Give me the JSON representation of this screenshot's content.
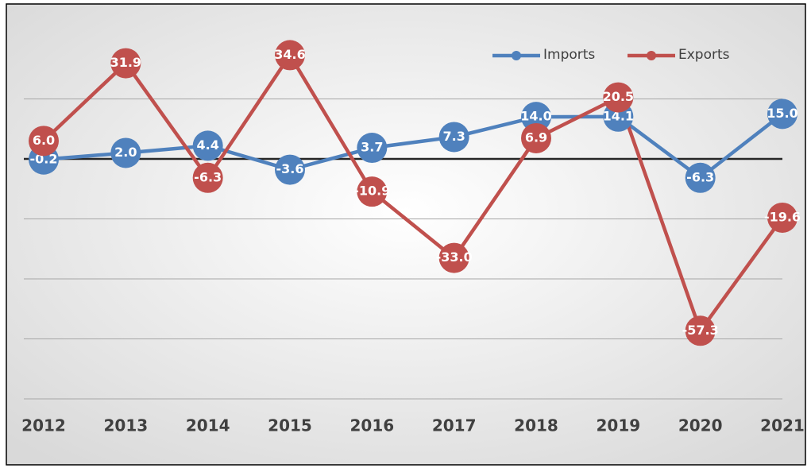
{
  "chart_data": {
    "type": "line",
    "categories": [
      "2012",
      "2013",
      "2014",
      "2015",
      "2016",
      "2017",
      "2018",
      "2019",
      "2020",
      "2021"
    ],
    "series": [
      {
        "name": "Imports",
        "color": "#4f81bd",
        "values": [
          -0.2,
          2.0,
          4.4,
          -3.6,
          3.7,
          7.3,
          14.0,
          14.1,
          -6.3,
          15.0
        ],
        "value_labels": [
          "-0.2",
          "2.0",
          "4.4",
          "-3.6",
          "3.7",
          "7.3",
          "14.0",
          "14.1",
          "-6.3",
          "15.0"
        ]
      },
      {
        "name": "Exports",
        "color": "#c0504d",
        "values": [
          6.0,
          31.9,
          -6.3,
          34.6,
          -10.9,
          -33.0,
          6.9,
          20.5,
          -57.3,
          -19.6
        ],
        "value_labels": [
          "6.0",
          "31.9",
          "-6.3",
          "34.6",
          "-10.9",
          "-33.0",
          "6.9",
          "20.5",
          "-57.3",
          "-19.6"
        ]
      }
    ],
    "ylim": [
      -80,
      40
    ],
    "yticks": [
      -80,
      -60,
      -40,
      -20,
      0,
      20,
      40
    ],
    "grid": true,
    "legend": "top-right"
  }
}
